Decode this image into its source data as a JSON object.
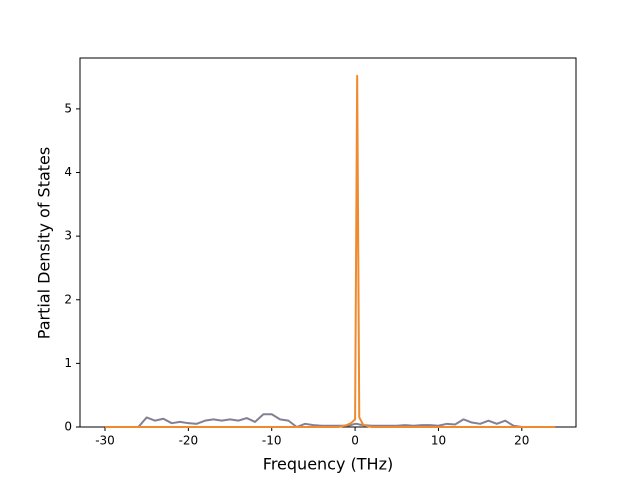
{
  "chart_data": {
    "type": "line",
    "x_label": "Frequency (THz)",
    "y_label": "Partial Density of States",
    "x": [
      -30,
      -29,
      -28,
      -27,
      -26,
      -25,
      -24,
      -23,
      -22,
      -21,
      -20,
      -19,
      -18,
      -17,
      -16,
      -15,
      -14,
      -13,
      -12,
      -11,
      -10,
      -9,
      -8,
      -7,
      -6,
      -5,
      -4,
      -3,
      -2,
      -1,
      -0.5,
      0,
      0.25,
      0.5,
      1,
      2,
      3,
      4,
      5,
      6,
      7,
      8,
      9,
      10,
      11,
      12,
      13,
      14,
      15,
      16,
      17,
      18,
      19,
      20,
      21,
      22,
      23,
      24
    ],
    "series": [
      {
        "color": "#857f94",
        "values": [
          0,
          0,
          0,
          0,
          0,
          0.15,
          0.1,
          0.13,
          0.06,
          0.08,
          0.06,
          0.05,
          0.1,
          0.12,
          0.1,
          0.12,
          0.1,
          0.14,
          0.08,
          0.2,
          0.2,
          0.12,
          0.1,
          0,
          0.05,
          0.03,
          0.02,
          0.02,
          0.02,
          0.02,
          0.03,
          0.05,
          0.05,
          0.04,
          0.03,
          0.02,
          0.02,
          0.02,
          0.02,
          0.03,
          0.02,
          0.03,
          0.03,
          0.02,
          0.05,
          0.04,
          0.12,
          0.07,
          0.05,
          0.1,
          0.05,
          0.1,
          0.02,
          0,
          0,
          0,
          0,
          0
        ]
      },
      {
        "color": "#ef8a2e",
        "values": [
          0,
          0,
          0,
          0,
          0,
          0,
          0,
          0,
          0,
          0,
          0,
          0,
          0,
          0,
          0,
          0,
          0,
          0,
          0,
          0,
          0,
          0,
          0,
          0,
          0,
          0,
          0,
          0,
          0,
          0.03,
          0.06,
          0.12,
          5.52,
          0.15,
          0.03,
          0,
          0,
          0,
          0,
          0,
          0,
          0,
          0,
          0,
          0,
          0,
          0,
          0,
          0,
          0,
          0,
          0,
          0,
          0,
          0,
          0,
          0,
          0
        ]
      }
    ],
    "xlim": [
      -33,
      26.5
    ],
    "ylim": [
      0,
      5.8
    ],
    "xticks": [
      -30,
      -20,
      -10,
      0,
      10,
      20
    ],
    "yticks": [
      0,
      1,
      2,
      3,
      4,
      5
    ]
  }
}
